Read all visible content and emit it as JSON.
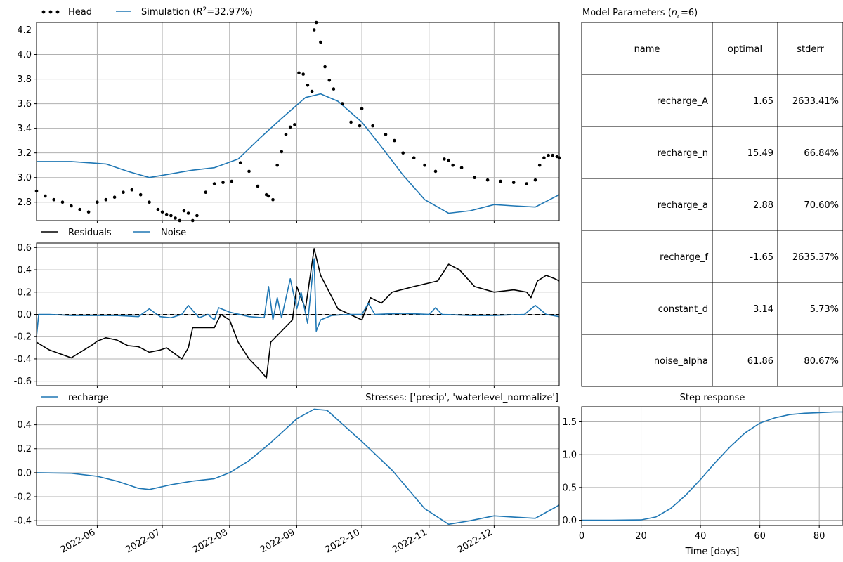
{
  "colors": {
    "head": "#000000",
    "simulation": "#1f77b4",
    "residuals": "#000000",
    "noise": "#1f77b4",
    "recharge": "#1f77b4",
    "step": "#1f77b4",
    "grid": "#b0b0b0"
  },
  "legends": {
    "head": "Head",
    "simulation_prefix": "Simulation (",
    "simulation_r": "R",
    "simulation_sup": "2",
    "simulation_suffix": "=32.97%)",
    "residuals": "Residuals",
    "noise": "Noise",
    "recharge": "recharge"
  },
  "stresses_title": "Stresses: ['precip', 'waterlevel_normalize']",
  "step_title": "Step response",
  "step_xlabel": "Time [days]",
  "params_table": {
    "title_prefix": "Model Parameters (",
    "title_n": "n",
    "title_sub": "c",
    "title_suffix": "=6)",
    "headers": [
      "name",
      "optimal",
      "stderr"
    ],
    "rows": [
      [
        "recharge_A",
        "1.65",
        "2633.41%"
      ],
      [
        "recharge_n",
        "15.49",
        "66.84%"
      ],
      [
        "recharge_a",
        "2.88",
        "70.60%"
      ],
      [
        "recharge_f",
        "-1.65",
        "2635.37%"
      ],
      [
        "constant_d",
        "3.14",
        "5.73%"
      ],
      [
        "noise_alpha",
        "61.86",
        "80.67%"
      ]
    ]
  },
  "chart_data": [
    {
      "type": "line",
      "panel": "head",
      "ylim": [
        2.65,
        4.26
      ],
      "yticks": [
        "2.8",
        "3.0",
        "3.2",
        "3.4",
        "3.6",
        "3.8",
        "4.0",
        "4.2"
      ],
      "xlim": [
        "2022-05-04",
        "2022-12-31"
      ],
      "grid": true,
      "legend": "top-left, above axes",
      "series": [
        {
          "name": "Head",
          "style": "points",
          "x": [
            "2022-05-04",
            "2022-05-08",
            "2022-05-12",
            "2022-05-16",
            "2022-05-20",
            "2022-05-24",
            "2022-05-28",
            "2022-06-01",
            "2022-06-05",
            "2022-06-09",
            "2022-06-13",
            "2022-06-17",
            "2022-06-21",
            "2022-06-25",
            "2022-06-29",
            "2022-07-01",
            "2022-07-03",
            "2022-07-05",
            "2022-07-07",
            "2022-07-09",
            "2022-07-11",
            "2022-07-13",
            "2022-07-15",
            "2022-07-17",
            "2022-07-21",
            "2022-07-25",
            "2022-07-29",
            "2022-08-02",
            "2022-08-06",
            "2022-08-10",
            "2022-08-14",
            "2022-08-18",
            "2022-08-19",
            "2022-08-21",
            "2022-08-23",
            "2022-08-25",
            "2022-08-27",
            "2022-08-29",
            "2022-08-31",
            "2022-09-02",
            "2022-09-04",
            "2022-09-06",
            "2022-09-08",
            "2022-09-09",
            "2022-09-10",
            "2022-09-12",
            "2022-09-14",
            "2022-09-16",
            "2022-09-18",
            "2022-09-22",
            "2022-09-26",
            "2022-09-30",
            "2022-10-01",
            "2022-10-06",
            "2022-10-12",
            "2022-10-16",
            "2022-10-20",
            "2022-10-25",
            "2022-10-30",
            "2022-11-04",
            "2022-11-08",
            "2022-11-10",
            "2022-11-12",
            "2022-11-16",
            "2022-11-22",
            "2022-11-28",
            "2022-12-04",
            "2022-12-10",
            "2022-12-16",
            "2022-12-20",
            "2022-12-22",
            "2022-12-24",
            "2022-12-26",
            "2022-12-28",
            "2022-12-30",
            "2022-12-31"
          ],
          "y": [
            2.89,
            2.85,
            2.82,
            2.8,
            2.77,
            2.74,
            2.72,
            2.8,
            2.82,
            2.84,
            2.88,
            2.9,
            2.86,
            2.8,
            2.74,
            2.72,
            2.7,
            2.69,
            2.67,
            2.65,
            2.73,
            2.71,
            2.65,
            2.69,
            2.88,
            2.95,
            2.96,
            2.97,
            3.12,
            3.05,
            2.93,
            2.86,
            2.85,
            2.82,
            3.1,
            3.21,
            3.35,
            3.41,
            3.43,
            3.85,
            3.84,
            3.75,
            3.7,
            4.2,
            4.26,
            4.1,
            3.9,
            3.79,
            3.72,
            3.6,
            3.45,
            3.42,
            3.56,
            3.42,
            3.35,
            3.3,
            3.2,
            3.16,
            3.1,
            3.05,
            3.15,
            3.14,
            3.1,
            3.08,
            3.0,
            2.98,
            2.97,
            2.96,
            2.95,
            2.98,
            3.1,
            3.16,
            3.18,
            3.18,
            3.17,
            3.16
          ]
        },
        {
          "name": "Simulation (R²=32.97%)",
          "style": "line",
          "x": [
            "2022-05-04",
            "2022-05-20",
            "2022-06-05",
            "2022-06-15",
            "2022-06-25",
            "2022-07-05",
            "2022-07-15",
            "2022-07-25",
            "2022-08-05",
            "2022-08-15",
            "2022-08-25",
            "2022-09-05",
            "2022-09-12",
            "2022-09-20",
            "2022-10-01",
            "2022-10-10",
            "2022-10-20",
            "2022-10-30",
            "2022-11-10",
            "2022-11-20",
            "2022-12-01",
            "2022-12-10",
            "2022-12-20",
            "2022-12-31"
          ],
          "y": [
            3.13,
            3.13,
            3.11,
            3.05,
            3.0,
            3.03,
            3.06,
            3.08,
            3.15,
            3.32,
            3.48,
            3.65,
            3.68,
            3.62,
            3.45,
            3.25,
            3.02,
            2.82,
            2.71,
            2.73,
            2.78,
            2.77,
            2.76,
            2.86
          ]
        }
      ]
    },
    {
      "type": "line",
      "panel": "residuals",
      "ylim": [
        -0.64,
        0.64
      ],
      "yticks": [
        "-0.6",
        "-0.4",
        "-0.2",
        "0.0",
        "0.2",
        "0.4",
        "0.6"
      ],
      "grid": true,
      "zero_line": "dashed",
      "series": [
        {
          "name": "Residuals",
          "x": [
            "2022-05-04",
            "2022-05-10",
            "2022-05-20",
            "2022-05-30",
            "2022-06-01",
            "2022-06-05",
            "2022-06-10",
            "2022-06-15",
            "2022-06-20",
            "2022-06-25",
            "2022-06-30",
            "2022-07-03",
            "2022-07-10",
            "2022-07-13",
            "2022-07-15",
            "2022-07-20",
            "2022-07-25",
            "2022-07-28",
            "2022-08-01",
            "2022-08-05",
            "2022-08-10",
            "2022-08-15",
            "2022-08-18",
            "2022-08-20",
            "2022-08-25",
            "2022-08-30",
            "2022-09-01",
            "2022-09-05",
            "2022-09-09",
            "2022-09-12",
            "2022-09-20",
            "2022-10-01",
            "2022-10-05",
            "2022-10-10",
            "2022-10-15",
            "2022-10-25",
            "2022-11-05",
            "2022-11-10",
            "2022-11-15",
            "2022-11-22",
            "2022-12-01",
            "2022-12-10",
            "2022-12-16",
            "2022-12-18",
            "2022-12-21",
            "2022-12-25",
            "2022-12-29",
            "2022-12-31"
          ],
          "y": [
            -0.25,
            -0.32,
            -0.39,
            -0.27,
            -0.24,
            -0.21,
            -0.23,
            -0.28,
            -0.29,
            -0.34,
            -0.32,
            -0.3,
            -0.4,
            -0.3,
            -0.12,
            -0.12,
            -0.12,
            0.0,
            -0.05,
            -0.25,
            -0.4,
            -0.5,
            -0.57,
            -0.25,
            -0.15,
            -0.05,
            0.25,
            0.05,
            0.59,
            0.35,
            0.05,
            -0.05,
            0.15,
            0.1,
            0.2,
            0.25,
            0.3,
            0.45,
            0.4,
            0.25,
            0.2,
            0.22,
            0.2,
            0.15,
            0.3,
            0.35,
            0.32,
            0.3
          ]
        },
        {
          "name": "Noise",
          "x": [
            "2022-05-04",
            "2022-05-05",
            "2022-05-10",
            "2022-05-20",
            "2022-05-30",
            "2022-06-10",
            "2022-06-20",
            "2022-06-25",
            "2022-06-30",
            "2022-07-05",
            "2022-07-10",
            "2022-07-13",
            "2022-07-18",
            "2022-07-22",
            "2022-07-25",
            "2022-07-27",
            "2022-08-01",
            "2022-08-10",
            "2022-08-17",
            "2022-08-19",
            "2022-08-21",
            "2022-08-23",
            "2022-08-25",
            "2022-08-29",
            "2022-09-01",
            "2022-09-03",
            "2022-09-06",
            "2022-09-09",
            "2022-09-10",
            "2022-09-12",
            "2022-09-17",
            "2022-09-25",
            "2022-10-01",
            "2022-10-04",
            "2022-10-07",
            "2022-10-20",
            "2022-11-01",
            "2022-11-04",
            "2022-11-07",
            "2022-11-20",
            "2022-12-01",
            "2022-12-15",
            "2022-12-20",
            "2022-12-25",
            "2022-12-31"
          ],
          "y": [
            -0.2,
            0.0,
            0.0,
            -0.01,
            -0.01,
            -0.01,
            -0.02,
            0.05,
            -0.02,
            -0.03,
            0.0,
            0.08,
            -0.03,
            0.0,
            -0.05,
            0.06,
            0.02,
            -0.02,
            -0.03,
            0.25,
            -0.05,
            0.15,
            -0.03,
            0.32,
            0.05,
            0.2,
            -0.08,
            0.5,
            -0.15,
            -0.05,
            -0.01,
            0.0,
            0.0,
            0.1,
            0.0,
            0.01,
            0.0,
            0.06,
            0.0,
            -0.01,
            -0.01,
            0.0,
            0.08,
            0.0,
            -0.02
          ]
        }
      ]
    },
    {
      "type": "line",
      "panel": "contributions",
      "title": "Stresses: ['precip', 'waterlevel_normalize']",
      "ylim": [
        -0.44,
        0.55
      ],
      "yticks": [
        "-0.4",
        "-0.2",
        "0.0",
        "0.2",
        "0.4"
      ],
      "xticks": [
        "2022-06",
        "2022-07",
        "2022-08",
        "2022-09",
        "2022-10",
        "2022-11",
        "2022-12"
      ],
      "grid": true,
      "series": [
        {
          "name": "recharge",
          "x": [
            "2022-05-04",
            "2022-05-20",
            "2022-06-01",
            "2022-06-10",
            "2022-06-20",
            "2022-06-25",
            "2022-07-05",
            "2022-07-15",
            "2022-07-25",
            "2022-08-01",
            "2022-08-10",
            "2022-08-20",
            "2022-09-01",
            "2022-09-09",
            "2022-09-15",
            "2022-10-01",
            "2022-10-15",
            "2022-10-30",
            "2022-11-10",
            "2022-11-20",
            "2022-12-01",
            "2022-12-10",
            "2022-12-20",
            "2022-12-31"
          ],
          "y": [
            0.0,
            -0.005,
            -0.03,
            -0.07,
            -0.13,
            -0.14,
            -0.1,
            -0.07,
            -0.05,
            0.0,
            0.1,
            0.25,
            0.45,
            0.53,
            0.52,
            0.26,
            0.02,
            -0.3,
            -0.43,
            -0.4,
            -0.36,
            -0.37,
            -0.38,
            -0.27
          ]
        }
      ]
    },
    {
      "type": "line",
      "panel": "step_response",
      "title": "Step response",
      "xlabel": "Time [days]",
      "xlim": [
        0,
        88
      ],
      "ylim": [
        -0.08,
        1.73
      ],
      "xticks": [
        "0",
        "20",
        "40",
        "60",
        "80"
      ],
      "yticks": [
        "0.0",
        "0.5",
        "1.0",
        "1.5"
      ],
      "grid": true,
      "series": [
        {
          "name": "",
          "x": [
            0,
            10,
            20,
            25,
            30,
            35,
            40,
            45,
            50,
            55,
            60,
            65,
            70,
            75,
            80,
            85,
            88
          ],
          "y": [
            0.0,
            0.0,
            0.005,
            0.05,
            0.18,
            0.38,
            0.62,
            0.88,
            1.12,
            1.33,
            1.48,
            1.56,
            1.61,
            1.63,
            1.64,
            1.65,
            1.65
          ]
        }
      ]
    }
  ]
}
